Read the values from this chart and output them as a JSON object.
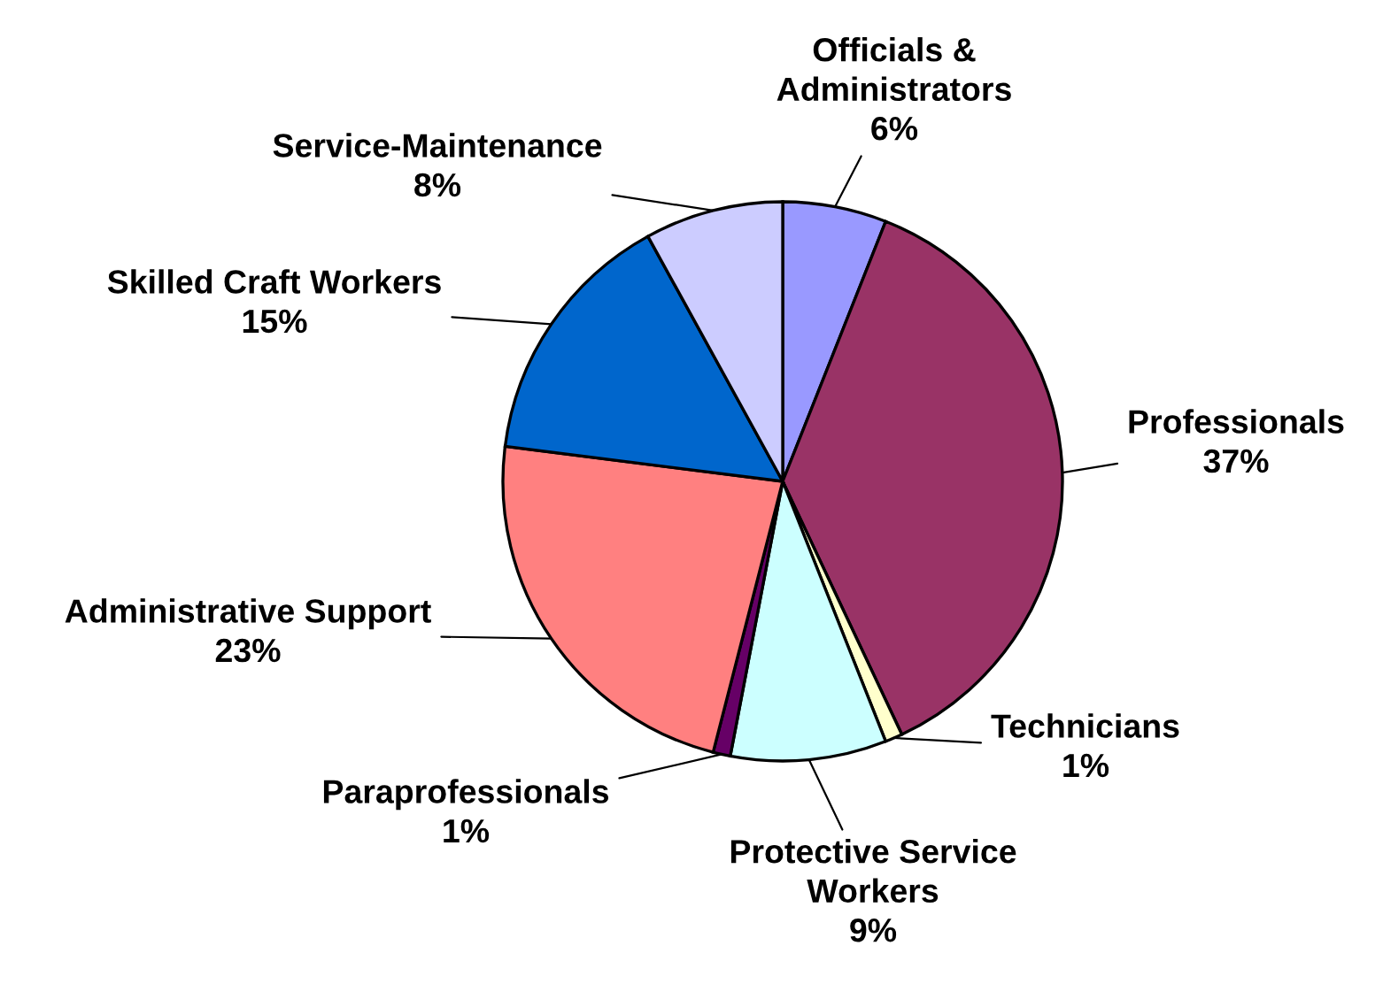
{
  "chart_data": {
    "type": "pie",
    "categories": [
      "Officials &\nAdministrators",
      "Professionals",
      "Technicians",
      "Protective Service\nWorkers",
      "Paraprofessionals",
      "Administrative Support",
      "Skilled Craft Workers",
      "Service-Maintenance"
    ],
    "values": [
      6,
      37,
      1,
      9,
      1,
      23,
      15,
      8
    ],
    "colors": [
      "#9999ff",
      "#993366",
      "#ffffcc",
      "#ccffff",
      "#660066",
      "#ff8080",
      "#0066cc",
      "#ccccff"
    ],
    "value_labels": [
      "6%",
      "37%",
      "1%",
      "9%",
      "1%",
      "23%",
      "15%",
      "8%"
    ],
    "legend": false
  }
}
